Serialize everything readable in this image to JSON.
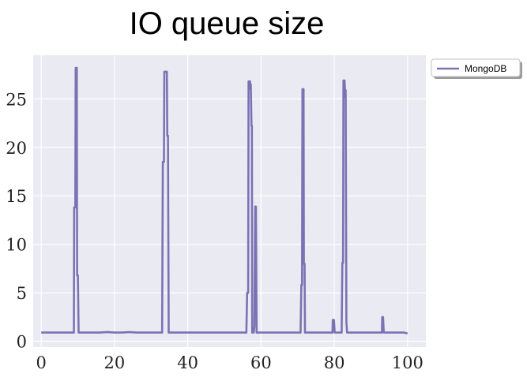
{
  "chart_data": {
    "type": "line",
    "title": "IO queue size",
    "xlabel": "",
    "ylabel": "",
    "xlim": [
      -2.2,
      105.0
    ],
    "ylim": [
      -0.6,
      29.5
    ],
    "xticks": [
      0,
      20,
      40,
      60,
      80,
      100
    ],
    "yticks": [
      0,
      5,
      10,
      15,
      20,
      25
    ],
    "grid": true,
    "legend_position": "outside-top-right",
    "colors": {
      "series": "#7b72b4",
      "plot_bg": "#eaeaf2",
      "grid": "#ffffff"
    },
    "series": [
      {
        "name": "MongoDB",
        "points": [
          [
            0,
            0.9
          ],
          [
            2,
            0.9
          ],
          [
            4,
            0.9
          ],
          [
            6,
            0.9
          ],
          [
            8,
            0.9
          ],
          [
            8.9,
            0.9
          ],
          [
            9.0,
            13.8
          ],
          [
            9.3,
            13.8
          ],
          [
            9.4,
            28.2
          ],
          [
            9.7,
            28.2
          ],
          [
            9.8,
            6.8
          ],
          [
            10.0,
            6.8
          ],
          [
            10.2,
            0.9
          ],
          [
            12,
            0.9
          ],
          [
            14,
            0.9
          ],
          [
            16,
            0.9
          ],
          [
            18,
            0.95
          ],
          [
            20,
            0.9
          ],
          [
            22,
            0.9
          ],
          [
            24,
            0.95
          ],
          [
            26,
            0.9
          ],
          [
            28,
            0.9
          ],
          [
            30,
            0.9
          ],
          [
            32,
            0.9
          ],
          [
            33.0,
            0.9
          ],
          [
            33.2,
            18.5
          ],
          [
            33.5,
            18.5
          ],
          [
            33.6,
            27.8
          ],
          [
            34.3,
            27.8
          ],
          [
            34.4,
            21.2
          ],
          [
            34.6,
            21.2
          ],
          [
            34.8,
            0.9
          ],
          [
            36,
            0.9
          ],
          [
            38,
            0.9
          ],
          [
            40,
            0.9
          ],
          [
            42,
            0.9
          ],
          [
            44,
            0.9
          ],
          [
            46,
            0.9
          ],
          [
            48,
            0.9
          ],
          [
            50,
            0.9
          ],
          [
            52,
            0.9
          ],
          [
            54,
            0.9
          ],
          [
            56.0,
            0.9
          ],
          [
            56.2,
            5.0
          ],
          [
            56.5,
            5.0
          ],
          [
            56.6,
            26.8
          ],
          [
            57.0,
            26.8
          ],
          [
            57.1,
            26.0
          ],
          [
            57.2,
            26.5
          ],
          [
            57.4,
            22.2
          ],
          [
            57.5,
            22.2
          ],
          [
            57.6,
            0.9
          ],
          [
            58.0,
            0.9
          ],
          [
            58.2,
            1.5
          ],
          [
            58.4,
            13.9
          ],
          [
            58.6,
            13.9
          ],
          [
            58.8,
            0.9
          ],
          [
            60,
            0.9
          ],
          [
            62,
            0.9
          ],
          [
            64,
            0.9
          ],
          [
            66,
            0.9
          ],
          [
            68,
            0.9
          ],
          [
            70,
            0.9
          ],
          [
            70.8,
            0.9
          ],
          [
            71.0,
            5.8
          ],
          [
            71.2,
            5.8
          ],
          [
            71.3,
            26.0
          ],
          [
            71.6,
            26.0
          ],
          [
            71.7,
            8.0
          ],
          [
            71.9,
            8.0
          ],
          [
            72.0,
            0.9
          ],
          [
            74,
            0.9
          ],
          [
            76,
            0.9
          ],
          [
            78,
            0.9
          ],
          [
            79.5,
            0.9
          ],
          [
            79.6,
            2.2
          ],
          [
            79.9,
            2.2
          ],
          [
            80.1,
            0.9
          ],
          [
            82.0,
            0.9
          ],
          [
            82.2,
            8.1
          ],
          [
            82.4,
            8.1
          ],
          [
            82.5,
            26.9
          ],
          [
            82.8,
            26.9
          ],
          [
            83.0,
            25.2
          ],
          [
            83.1,
            25.9
          ],
          [
            83.3,
            2.0
          ],
          [
            83.5,
            0.9
          ],
          [
            85,
            0.9
          ],
          [
            87,
            0.9
          ],
          [
            89,
            0.9
          ],
          [
            91,
            0.9
          ],
          [
            93.0,
            0.9
          ],
          [
            93.1,
            2.5
          ],
          [
            93.3,
            2.5
          ],
          [
            93.5,
            0.9
          ],
          [
            95,
            0.9
          ],
          [
            97,
            0.9
          ],
          [
            99,
            0.9
          ],
          [
            100,
            0.8
          ]
        ]
      }
    ]
  }
}
